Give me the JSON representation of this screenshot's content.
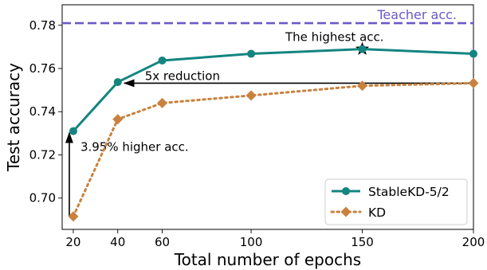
{
  "chart_data": {
    "type": "line",
    "xlabel": "Total number of epochs",
    "ylabel": "Test accuracy",
    "x_ticks": [
      20,
      40,
      60,
      100,
      150,
      200
    ],
    "y_ticks": [
      "0.70",
      "0.72",
      "0.74",
      "0.76",
      "0.78"
    ],
    "xlim": [
      15,
      200
    ],
    "ylim": [
      0.6855,
      0.7895
    ],
    "grid": true,
    "legend_position": "bottom-right",
    "series": [
      {
        "name": "StableKD-5/2",
        "color": "#138580",
        "marker": "circle",
        "line_style": "solid",
        "x": [
          20,
          40,
          60,
          100,
          150,
          200
        ],
        "y": [
          0.731,
          0.7537,
          0.7637,
          0.7668,
          0.769,
          0.7668
        ]
      },
      {
        "name": "KD",
        "color": "#c9823e",
        "marker": "diamond",
        "line_style": "dotted",
        "x": [
          20,
          40,
          60,
          100,
          150,
          200
        ],
        "y": [
          0.6915,
          0.7365,
          0.744,
          0.7475,
          0.752,
          0.7532
        ]
      }
    ],
    "reference_line": {
      "label": "Teacher acc.",
      "y": 0.781,
      "color": "#6b58c9"
    },
    "annotations": {
      "highest": {
        "text": "The highest acc.",
        "x": 150,
        "y": 0.769
      },
      "reduction": {
        "text": "5x reduction",
        "from_x": 200,
        "to_x": 40,
        "y": 0.7532
      },
      "higher": {
        "text": "3.95% higher acc.",
        "x": 20,
        "from_y": 0.6915,
        "to_y": 0.731
      }
    }
  }
}
